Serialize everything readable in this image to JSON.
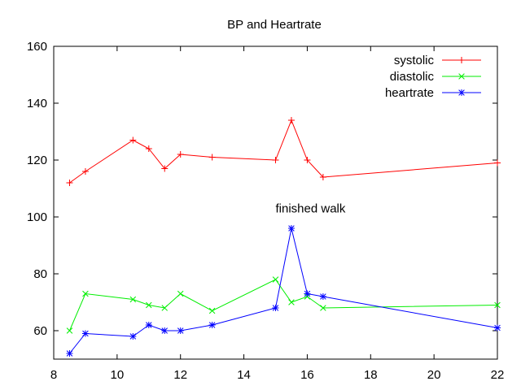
{
  "chart_data": {
    "type": "line",
    "title": "BP and Heartrate",
    "xlabel": "",
    "ylabel": "",
    "xlim": [
      8,
      22
    ],
    "ylim": [
      50,
      160
    ],
    "xticks": [
      8,
      10,
      12,
      14,
      16,
      18,
      20,
      22
    ],
    "yticks": [
      60,
      80,
      100,
      120,
      140,
      160
    ],
    "grid": false,
    "legend_position": "top-right",
    "series": [
      {
        "name": "systolic",
        "color": "#ff0000",
        "marker": "plus",
        "x": [
          8.5,
          9.0,
          10.5,
          11.0,
          11.5,
          12.0,
          13.0,
          15.0,
          15.5,
          16.0,
          16.5,
          22.0
        ],
        "y": [
          112,
          116,
          127,
          124,
          117,
          122,
          121,
          120,
          134,
          120,
          114,
          119
        ]
      },
      {
        "name": "diastolic",
        "color": "#00ee00",
        "marker": "cross",
        "x": [
          8.5,
          9.0,
          10.5,
          11.0,
          11.5,
          12.0,
          13.0,
          15.0,
          15.5,
          16.0,
          16.5,
          22.0
        ],
        "y": [
          60,
          73,
          71,
          69,
          68,
          73,
          67,
          78,
          70,
          72,
          68,
          69
        ]
      },
      {
        "name": "heartrate",
        "color": "#0000ff",
        "marker": "star",
        "x": [
          8.5,
          9.0,
          10.5,
          11.0,
          11.5,
          12.0,
          13.0,
          15.0,
          15.5,
          16.0,
          16.5,
          22.0
        ],
        "y": [
          52,
          59,
          58,
          62,
          60,
          60,
          62,
          68,
          96,
          73,
          72,
          61
        ]
      }
    ],
    "annotations": [
      {
        "text": "finished walk",
        "x": 15.0,
        "y": 103
      }
    ]
  }
}
